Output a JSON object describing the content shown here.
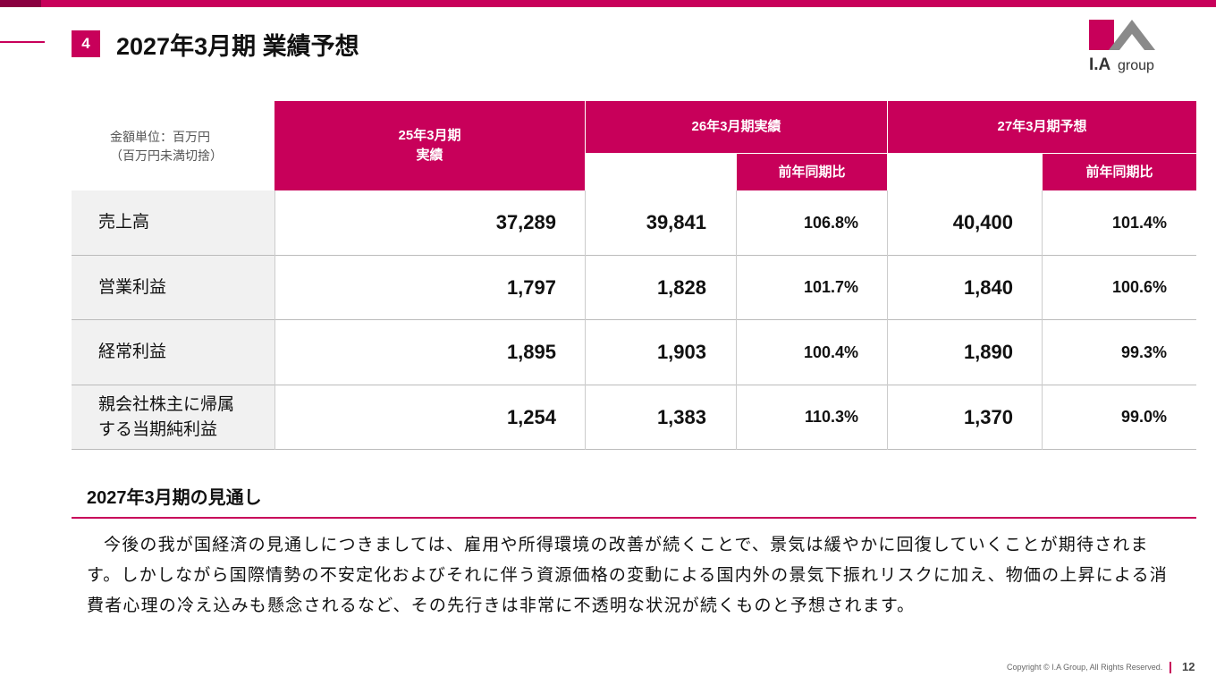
{
  "header": {
    "section_number": "4",
    "title": "2027年3月期 業績予想",
    "logo_text": "I.Agroup"
  },
  "table": {
    "unit_note_line1": "金額単位：百万円",
    "unit_note_line2": "（百万円未満切捨）",
    "col_fy25_line1": "25年3月期",
    "col_fy25_line2": "実績",
    "col_fy26": "26年3月期実績",
    "col_fy27": "27年3月期予想",
    "sub_yoy_26": "前年同期比",
    "sub_yoy_27": "前年同期比",
    "rows": [
      {
        "label_line1": "売上高",
        "label_line2": "",
        "fy25": "37,289",
        "fy26": "39,841",
        "fy26_yoy": "106.8%",
        "fy27": "40,400",
        "fy27_yoy": "101.4%"
      },
      {
        "label_line1": "営業利益",
        "label_line2": "",
        "fy25": "1,797",
        "fy26": "1,828",
        "fy26_yoy": "101.7%",
        "fy27": "1,840",
        "fy27_yoy": "100.6%"
      },
      {
        "label_line1": "経常利益",
        "label_line2": "",
        "fy25": "1,895",
        "fy26": "1,903",
        "fy26_yoy": "100.4%",
        "fy27": "1,890",
        "fy27_yoy": "99.3%"
      },
      {
        "label_line1": "親会社株主に帰属",
        "label_line2": "する当期純利益",
        "fy25": "1,254",
        "fy26": "1,383",
        "fy26_yoy": "110.3%",
        "fy27": "1,370",
        "fy27_yoy": "99.0%"
      }
    ]
  },
  "outlook": {
    "title": "2027年3月期の見通し",
    "body": "今後の我が国経済の見通しにつきましては、雇用や所得環境の改善が続くことで、景気は緩やかに回復していくことが期待されます。しかしながら国際情勢の不安定化およびそれに伴う資源価格の変動による国内外の景気下振れリスクに加え、物価の上昇による消費者心理の冷え込みも懸念されるなど、その先行きは非常に不透明な状況が続くものと予想されます。"
  },
  "footer": {
    "copyright": "Copyright © I.A Group, All Rights Reserved.",
    "page": "12"
  },
  "colors": {
    "accent": "#c8005a",
    "label_bg": "#f1f1f1"
  }
}
